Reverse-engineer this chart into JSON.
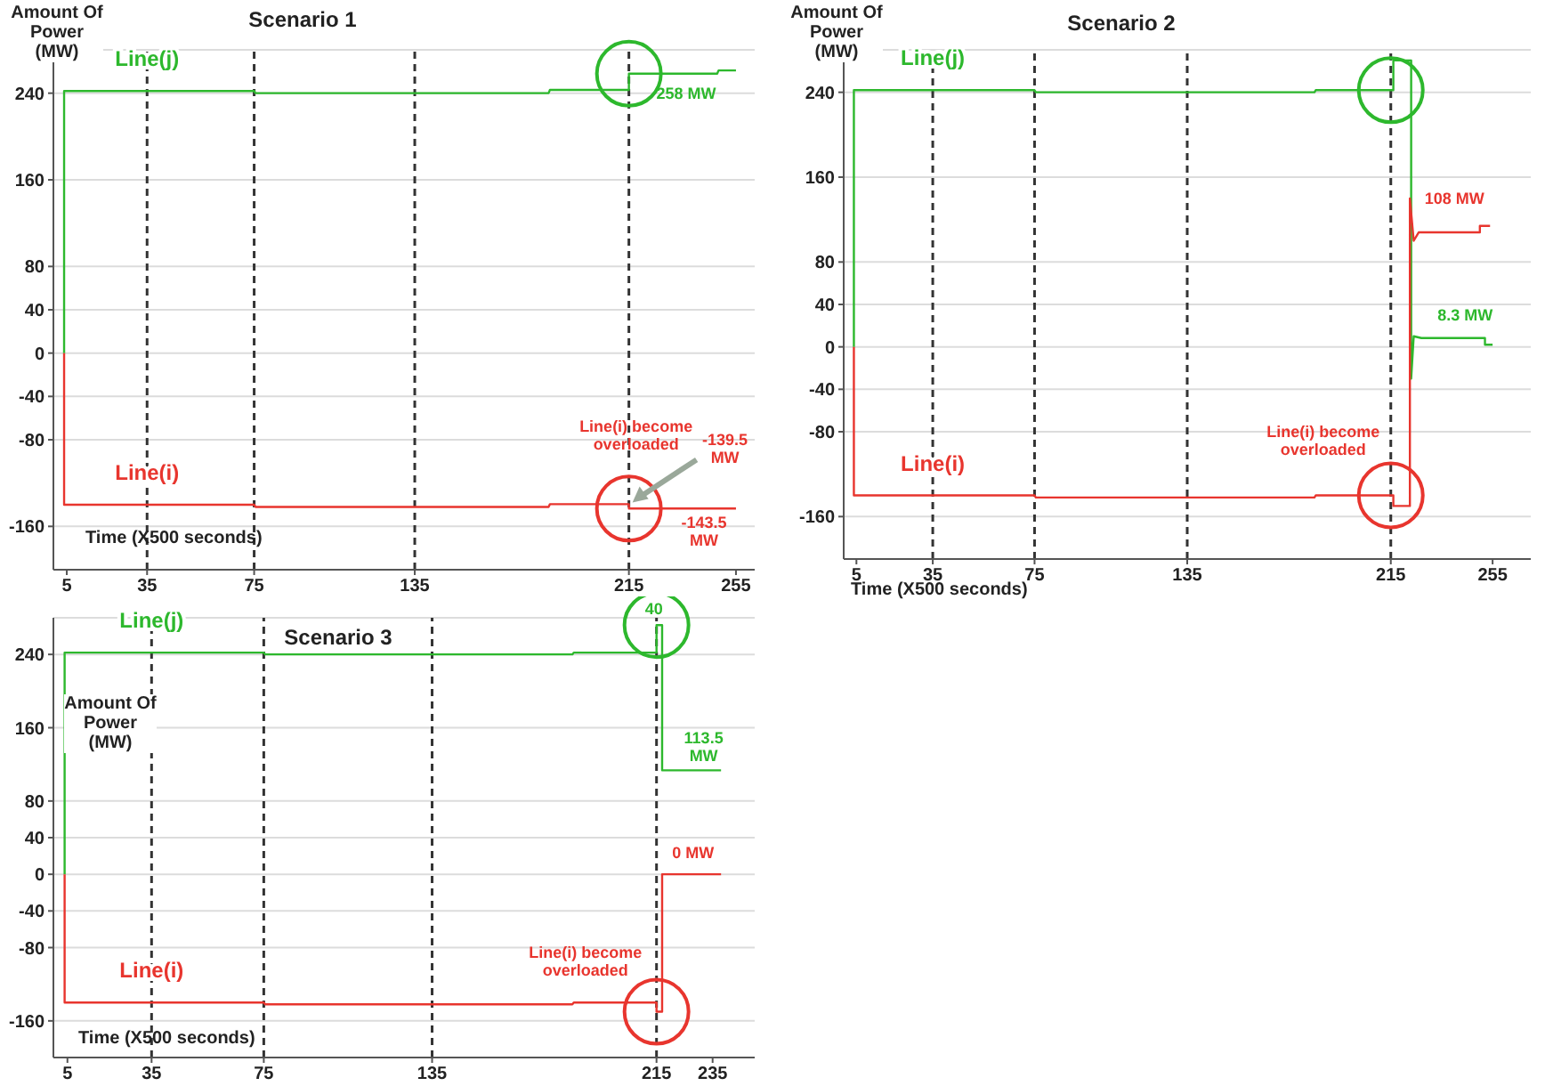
{
  "chart_data": [
    {
      "type": "line",
      "title": "Scenario 1",
      "xlabel": "Time (X500 seconds)",
      "ylabel": "Amount Of Power (MW)",
      "xlim": [
        0,
        262
      ],
      "xticks": [
        5,
        35,
        75,
        135,
        215,
        255
      ],
      "ylim": [
        -200,
        280
      ],
      "yticks": [
        240,
        160,
        80,
        40,
        0,
        -40,
        -80,
        -160
      ],
      "grid": "y",
      "legend": false,
      "marker": "none",
      "line_style": "solid",
      "series": [
        {
          "name": "Line(j)",
          "color": "#2db82d",
          "x": [
            4,
            4,
            75,
            75.5,
            185,
            185.5,
            215,
            215,
            248,
            248.5,
            255
          ],
          "values": [
            0,
            242,
            242,
            240,
            240,
            243,
            243,
            258,
            258,
            261,
            261
          ]
        },
        {
          "name": "Line(i)",
          "color": "#e8352e",
          "x": [
            4,
            4,
            75,
            75.5,
            185,
            185.5,
            215,
            215,
            255
          ],
          "values": [
            0,
            -140,
            -140,
            -142,
            -142,
            -139.5,
            -139.5,
            -143.5,
            -143.5
          ]
        }
      ],
      "ref_lines": [
        {
          "axis": "x",
          "value": 35,
          "color": "#333333",
          "line_style": "dashed"
        },
        {
          "axis": "x",
          "value": 75,
          "color": "#333333",
          "line_style": "dashed"
        },
        {
          "axis": "x",
          "value": 135,
          "color": "#333333",
          "line_style": "dashed"
        },
        {
          "axis": "x",
          "value": 215,
          "color": "#333333",
          "line_style": "dashed"
        }
      ],
      "annotations": [
        {
          "text": "258 MW",
          "x": 255,
          "y": 258
        },
        {
          "text": "Line(i) become overloaded",
          "x": 215,
          "y": -140
        },
        {
          "text": "-139.5 MW",
          "x": 215,
          "y": -139.5
        },
        {
          "text": "-143.5 MW",
          "x": 255,
          "y": -143.5
        }
      ]
    },
    {
      "type": "line",
      "title": "Scenario 2",
      "xlabel": "Time (X500 seconds)",
      "ylabel": "Amount Of Power (MW)",
      "xlim": [
        0,
        270
      ],
      "xticks": [
        5,
        35,
        75,
        135,
        215,
        255
      ],
      "ylim": [
        -200,
        280
      ],
      "yticks": [
        240,
        160,
        80,
        40,
        0,
        -40,
        -80,
        -160
      ],
      "grid": "y",
      "legend": false,
      "marker": "none",
      "line_style": "solid",
      "series": [
        {
          "name": "Line(j)",
          "color": "#2db82d",
          "x": [
            4,
            4,
            75,
            75.5,
            185,
            185.5,
            216,
            216,
            223,
            223,
            224,
            227,
            252,
            252,
            255
          ],
          "values": [
            0,
            242,
            242,
            240,
            240,
            242,
            242,
            270,
            270,
            -30,
            10,
            8.3,
            8.3,
            2,
            2
          ]
        },
        {
          "name": "Line(i)",
          "color": "#e8352e",
          "x": [
            4,
            4,
            75,
            75.5,
            185,
            185.5,
            216,
            216,
            222.5,
            222.5,
            224,
            226,
            250,
            250,
            254
          ],
          "values": [
            0,
            -140,
            -140,
            -142,
            -142,
            -140,
            -140,
            -150,
            -150,
            140,
            100,
            108,
            108,
            114,
            114
          ]
        }
      ],
      "ref_lines": [
        {
          "axis": "x",
          "value": 35,
          "color": "#333333",
          "line_style": "dashed"
        },
        {
          "axis": "x",
          "value": 75,
          "color": "#333333",
          "line_style": "dashed"
        },
        {
          "axis": "x",
          "value": 135,
          "color": "#333333",
          "line_style": "dashed"
        },
        {
          "axis": "x",
          "value": 215,
          "color": "#333333",
          "line_style": "dashed"
        }
      ],
      "annotations": [
        {
          "text": "108 MW",
          "x": 240,
          "y": 108
        },
        {
          "text": "8.3 MW",
          "x": 240,
          "y": 8.3
        },
        {
          "text": "Line(i) become overloaded",
          "x": 215,
          "y": -140
        }
      ]
    },
    {
      "type": "line",
      "title": "Scenario 3",
      "xlabel": "Time (X500 seconds)",
      "ylabel": "Amount Of Power (MW)",
      "xlim": [
        0,
        250
      ],
      "xticks": [
        5,
        35,
        75,
        135,
        215,
        235
      ],
      "ylim": [
        -200,
        280
      ],
      "yticks": [
        240,
        160,
        80,
        40,
        0,
        -40,
        -80,
        -160
      ],
      "grid": "y",
      "legend": false,
      "marker": "none",
      "line_style": "solid",
      "series": [
        {
          "name": "Line(j)",
          "color": "#2db82d",
          "x": [
            4,
            4,
            75,
            75.5,
            185,
            185.5,
            215,
            215,
            217,
            217,
            238
          ],
          "values": [
            0,
            242,
            242,
            240,
            240,
            242,
            242,
            272,
            272,
            113.5,
            113.5
          ]
        },
        {
          "name": "Line(i)",
          "color": "#e8352e",
          "x": [
            4,
            4,
            75,
            75.5,
            185,
            185.5,
            215,
            215,
            217,
            217,
            238
          ],
          "values": [
            0,
            -140,
            -140,
            -142,
            -142,
            -140,
            -140,
            -150,
            -150,
            0,
            0
          ]
        }
      ],
      "ref_lines": [
        {
          "axis": "x",
          "value": 35,
          "color": "#333333",
          "line_style": "dashed"
        },
        {
          "axis": "x",
          "value": 75,
          "color": "#333333",
          "line_style": "dashed"
        },
        {
          "axis": "x",
          "value": 135,
          "color": "#333333",
          "line_style": "dashed"
        },
        {
          "axis": "x",
          "value": 215,
          "color": "#333333",
          "line_style": "dashed"
        }
      ],
      "annotations": [
        {
          "text": "40",
          "x": 216,
          "y": 272
        },
        {
          "text": "113.5 MW",
          "x": 228,
          "y": 113.5
        },
        {
          "text": "0 MW",
          "x": 228,
          "y": 0
        },
        {
          "text": "Line(i) become overloaded",
          "x": 215,
          "y": -140
        }
      ]
    }
  ]
}
